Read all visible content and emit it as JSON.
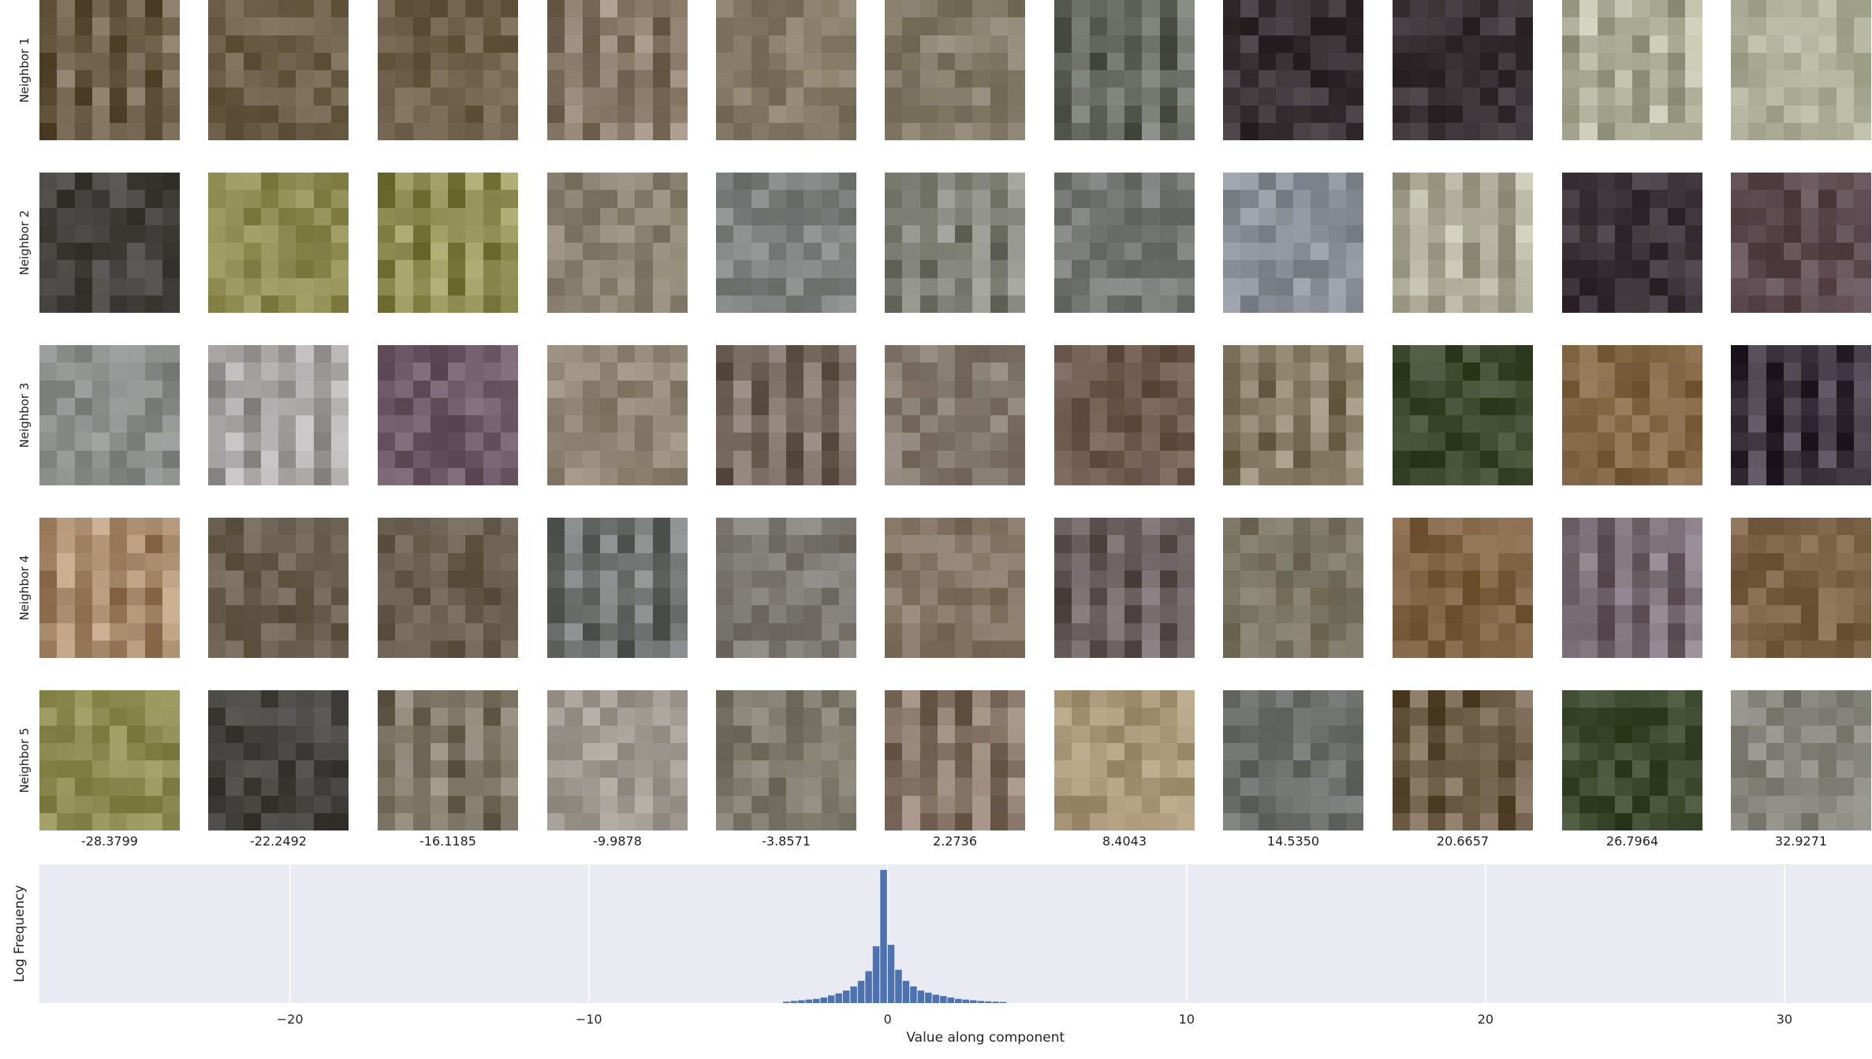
{
  "neighbor_labels": [
    "Neighbor 1",
    "Neighbor 2",
    "Neighbor 3",
    "Neighbor 4",
    "Neighbor 5"
  ],
  "column_values": [
    "-28.3799",
    "-22.2492",
    "-16.1185",
    "-9.9878",
    "-3.8571",
    "2.2736",
    "8.4043",
    "14.5350",
    "20.6657",
    "26.7964",
    "32.9271"
  ],
  "patch_colors": [
    [
      "#6e604a",
      "#6e604a",
      "#6e604a",
      "#8a7a6a",
      "#857a66",
      "#857c6a",
      "#686c64",
      "#3b3236",
      "#3b3236",
      "#aeae98",
      "#aeae98"
    ],
    [
      "#45433f",
      "#8e8c52",
      "#8e8c52",
      "#8c8272",
      "#7e8280",
      "#82837a",
      "#767874",
      "#8c909a",
      "#aeac98",
      "#3d343a",
      "#5e4c52"
    ],
    [
      "#8c8e8c",
      "#a8a4a4",
      "#6e5a68",
      "#928676",
      "#7a6c62",
      "#857a6e",
      "#6e5a4e",
      "#867c66",
      "#3e4a2e",
      "#836644",
      "#3e3640"
    ],
    [
      "#a88a6c",
      "#6a5e4e",
      "#6a5e4e",
      "#6e7270",
      "#7e7a74",
      "#857666",
      "#6c6262",
      "#7a7462",
      "#7e6242",
      "#7a6c74",
      "#7e6448"
    ],
    [
      "#8e8c52",
      "#45433f",
      "#7e7666",
      "#a09a92",
      "#7e7a6c",
      "#857466",
      "#a89878",
      "#6e706c",
      "#6e5e48",
      "#3e4a2e",
      "#84847c"
    ]
  ],
  "chart_data": {
    "type": "bar",
    "xlabel": "Value along component",
    "ylabel": "Log Frequency",
    "xlim": [
      -28.38,
      32.93
    ],
    "xticks": [
      -20,
      -10,
      0,
      10,
      20,
      30
    ],
    "xtick_labels": [
      "−20",
      "−10",
      "0",
      "10",
      "20",
      "30"
    ],
    "ylim": [
      0,
      1
    ],
    "grid": true,
    "bar_color": "#4c72b0",
    "background": "#eaeaf2",
    "bin_width": 0.25,
    "bin_centers": [
      -3.375,
      -3.125,
      -2.875,
      -2.625,
      -2.375,
      -2.125,
      -1.875,
      -1.625,
      -1.375,
      -1.125,
      -0.875,
      -0.625,
      -0.375,
      -0.125,
      0.125,
      0.375,
      0.625,
      0.875,
      1.125,
      1.375,
      1.625,
      1.875,
      2.125,
      2.375,
      2.625,
      2.875,
      3.125,
      3.375,
      3.625,
      3.875
    ],
    "heights": [
      0.01,
      0.015,
      0.02,
      0.025,
      0.03,
      0.04,
      0.055,
      0.07,
      0.09,
      0.12,
      0.16,
      0.23,
      0.41,
      0.96,
      0.42,
      0.24,
      0.16,
      0.12,
      0.09,
      0.075,
      0.06,
      0.05,
      0.04,
      0.03,
      0.025,
      0.02,
      0.015,
      0.012,
      0.01,
      0.008
    ]
  }
}
